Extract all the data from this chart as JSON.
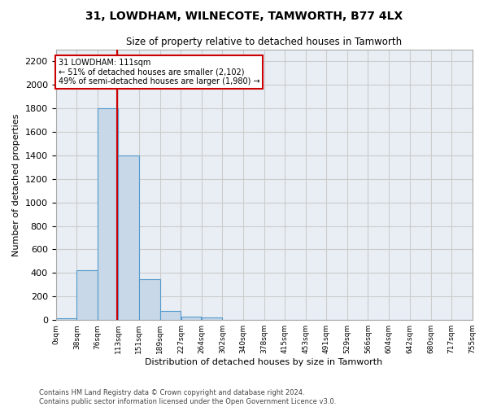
{
  "title1": "31, LOWDHAM, WILNECOTE, TAMWORTH, B77 4LX",
  "title2": "Size of property relative to detached houses in Tamworth",
  "xlabel": "Distribution of detached houses by size in Tamworth",
  "ylabel": "Number of detached properties",
  "footer1": "Contains HM Land Registry data © Crown copyright and database right 2024.",
  "footer2": "Contains public sector information licensed under the Open Government Licence v3.0.",
  "annotation_line1": "31 LOWDHAM: 111sqm",
  "annotation_line2": "← 51% of detached houses are smaller (2,102)",
  "annotation_line3": "49% of semi-detached houses are larger (1,980) →",
  "property_size_sqm": 111,
  "bar_left_edges": [
    0,
    38,
    76,
    113,
    151,
    189,
    227,
    264,
    302,
    340,
    378,
    415,
    453,
    491,
    529,
    566,
    604,
    642,
    680,
    717
  ],
  "bar_widths": [
    38,
    38,
    37,
    38,
    38,
    38,
    37,
    38,
    38,
    38,
    37,
    38,
    38,
    38,
    37,
    38,
    38,
    38,
    37,
    38
  ],
  "bar_heights": [
    15,
    420,
    1800,
    1400,
    350,
    80,
    30,
    20,
    0,
    0,
    0,
    0,
    0,
    0,
    0,
    0,
    0,
    0,
    0,
    0
  ],
  "tick_labels": [
    "0sqm",
    "38sqm",
    "76sqm",
    "113sqm",
    "151sqm",
    "189sqm",
    "227sqm",
    "264sqm",
    "302sqm",
    "340sqm",
    "378sqm",
    "415sqm",
    "453sqm",
    "491sqm",
    "529sqm",
    "566sqm",
    "604sqm",
    "642sqm",
    "680sqm",
    "717sqm",
    "755sqm"
  ],
  "bar_color": "#c8d8e8",
  "bar_edge_color": "#5599cc",
  "vline_color": "#cc0000",
  "vline_x": 111,
  "annotation_box_color": "#cc0000",
  "annotation_bg_color": "#ffffff",
  "grid_color": "#cccccc",
  "bg_color": "#e8eef4",
  "ylim": [
    0,
    2300
  ],
  "xlim": [
    0,
    755
  ],
  "yticks": [
    0,
    200,
    400,
    600,
    800,
    1000,
    1200,
    1400,
    1600,
    1800,
    2000,
    2200
  ]
}
